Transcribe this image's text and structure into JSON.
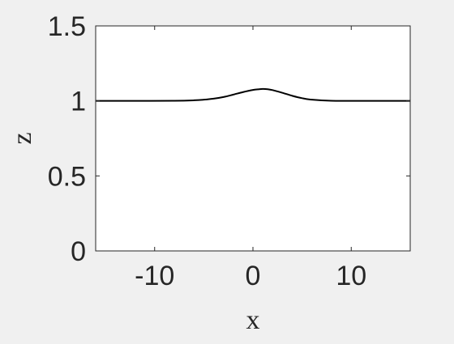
{
  "chart_data": {
    "type": "line",
    "title": "",
    "xlabel": "x",
    "ylabel": "z",
    "xlim": [
      -16,
      16
    ],
    "ylim": [
      0,
      1.5
    ],
    "xticks": [
      -10,
      0,
      10
    ],
    "yticks": [
      0,
      0.5,
      1,
      1.5
    ],
    "xtick_labels": [
      "-10",
      "0",
      "10"
    ],
    "ytick_labels": [
      "0",
      "0.5",
      "1",
      "1.5"
    ],
    "grid": false,
    "box": true,
    "series": [
      {
        "color": "#000000",
        "x": [
          -16,
          -12,
          -8,
          -6,
          -5,
          -4,
          -3,
          -2,
          -1,
          0,
          0.5,
          1,
          1.5,
          2,
          3,
          4,
          5,
          6,
          8,
          12,
          16
        ],
        "y": [
          1.0,
          1.0,
          1.001,
          1.004,
          1.008,
          1.015,
          1.026,
          1.042,
          1.059,
          1.073,
          1.077,
          1.08,
          1.078,
          1.072,
          1.054,
          1.034,
          1.018,
          1.008,
          1.001,
          1.0,
          1.0
        ]
      }
    ]
  }
}
